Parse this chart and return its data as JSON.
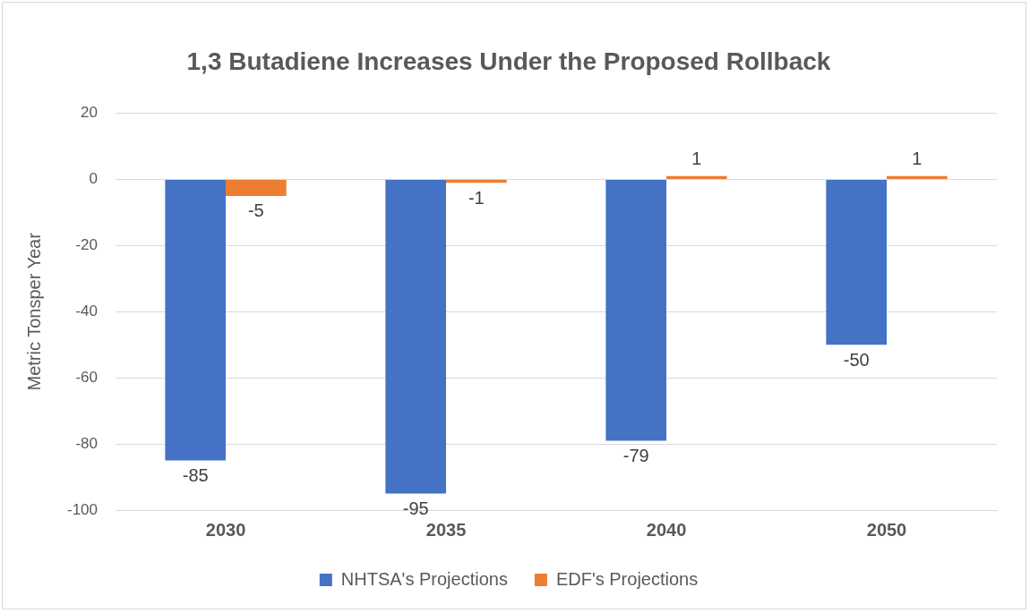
{
  "chart_data": {
    "type": "bar",
    "title": "1,3 Butadiene Increases Under the Proposed Rollback",
    "ylabel": "Metric Tonsper Year",
    "categories": [
      "2030",
      "2035",
      "2040",
      "2050"
    ],
    "series": [
      {
        "name": "NHTSA's Projections",
        "color": "#4472c4",
        "values": [
          -85,
          -95,
          -79,
          -50
        ]
      },
      {
        "name": "EDF's Projections",
        "color": "#ed7d31",
        "values": [
          -5,
          -1,
          1,
          1
        ]
      }
    ],
    "ylim": [
      -100,
      20
    ],
    "yticks": [
      -100,
      -80,
      -60,
      -40,
      -20,
      0,
      20
    ],
    "grid": "y",
    "legend": "bottom",
    "data_labels": true
  }
}
